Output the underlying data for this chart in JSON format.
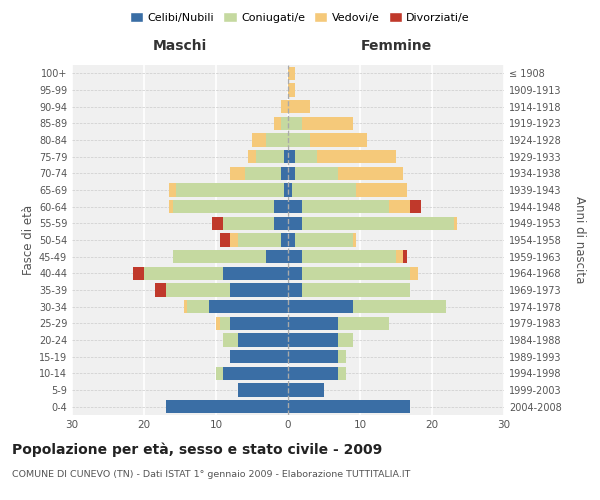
{
  "age_groups": [
    "0-4",
    "5-9",
    "10-14",
    "15-19",
    "20-24",
    "25-29",
    "30-34",
    "35-39",
    "40-44",
    "45-49",
    "50-54",
    "55-59",
    "60-64",
    "65-69",
    "70-74",
    "75-79",
    "80-84",
    "85-89",
    "90-94",
    "95-99",
    "100+"
  ],
  "year_labels": [
    "2004-2008",
    "1999-2003",
    "1994-1998",
    "1989-1993",
    "1984-1988",
    "1979-1983",
    "1974-1978",
    "1969-1973",
    "1964-1968",
    "1959-1963",
    "1954-1958",
    "1949-1953",
    "1944-1948",
    "1939-1943",
    "1934-1938",
    "1929-1933",
    "1924-1928",
    "1919-1923",
    "1914-1918",
    "1909-1913",
    "≤ 1908"
  ],
  "maschi": {
    "celibi": [
      17,
      7,
      9,
      8,
      7,
      8,
      11,
      8,
      9,
      3,
      1,
      2,
      2,
      0.5,
      1,
      0.5,
      0,
      0,
      0,
      0,
      0
    ],
    "coniugati": [
      0,
      0,
      1,
      0,
      2,
      1.5,
      3,
      9,
      11,
      13,
      6,
      7,
      14,
      15,
      5,
      4,
      3,
      1,
      0,
      0,
      0
    ],
    "vedovi": [
      0,
      0,
      0,
      0,
      0,
      0.5,
      0.5,
      0,
      0,
      0,
      1,
      0,
      0.5,
      1,
      2,
      1,
      2,
      1,
      1,
      0,
      0
    ],
    "divorziati": [
      0,
      0,
      0,
      0,
      0,
      0,
      0,
      1.5,
      1.5,
      0,
      1.5,
      1.5,
      0,
      0,
      0,
      0,
      0,
      0,
      0,
      0,
      0
    ]
  },
  "femmine": {
    "nubili": [
      17,
      5,
      7,
      7,
      7,
      7,
      9,
      2,
      2,
      2,
      1,
      2,
      2,
      0.5,
      1,
      1,
      0,
      0,
      0,
      0,
      0
    ],
    "coniugate": [
      0,
      0,
      1,
      1,
      2,
      7,
      13,
      15,
      15,
      13,
      8,
      21,
      12,
      9,
      6,
      3,
      3,
      2,
      0,
      0,
      0
    ],
    "vedove": [
      0,
      0,
      0,
      0,
      0,
      0,
      0,
      0,
      1,
      1,
      0.5,
      0.5,
      3,
      7,
      9,
      11,
      8,
      7,
      3,
      1,
      1
    ],
    "divorziate": [
      0,
      0,
      0,
      0,
      0,
      0,
      0,
      0,
      0,
      0.5,
      0,
      0,
      1.5,
      0,
      0,
      0,
      0,
      0,
      0,
      0,
      0
    ]
  },
  "colors": {
    "celibi": "#3a6ea5",
    "coniugati": "#c5d9a0",
    "vedovi": "#f5c97a",
    "divorziati": "#c0392b"
  },
  "title": "Popolazione per età, sesso e stato civile - 2009",
  "subtitle": "COMUNE DI CUNEVO (TN) - Dati ISTAT 1° gennaio 2009 - Elaborazione TUTTITALIA.IT",
  "xlabel_left": "Maschi",
  "xlabel_right": "Femmine",
  "ylabel_left": "Fasce di età",
  "ylabel_right": "Anni di nascita",
  "xlim": 30,
  "background_color": "#f0f0f0",
  "legend_labels": [
    "Celibi/Nubili",
    "Coniugati/e",
    "Vedovi/e",
    "Divorziati/e"
  ]
}
